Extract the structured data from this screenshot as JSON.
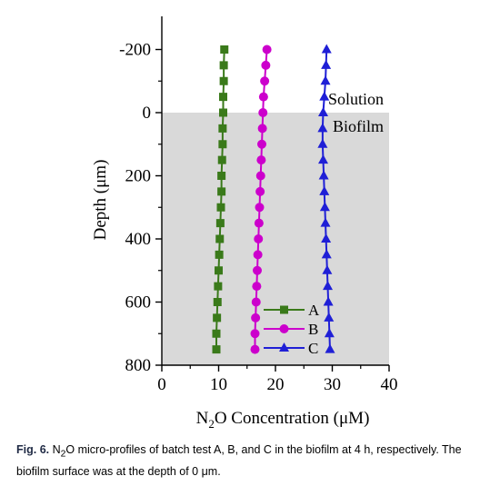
{
  "chart_data": {
    "type": "line",
    "title": "",
    "xlabel_parts": [
      "N",
      "2",
      "O  Concentration (μM)"
    ],
    "ylabel": "Depth (μm)",
    "xlim": [
      0,
      40
    ],
    "ylim": [
      -250,
      800
    ],
    "y_inverted": true,
    "x_ticks": [
      0,
      10,
      20,
      30,
      40
    ],
    "y_ticks": [
      -200,
      0,
      200,
      400,
      600,
      800
    ],
    "grid": false,
    "legend_position": "bottom-center",
    "shaded_region": {
      "from_depth": 0,
      "to_depth": 800,
      "color": "#d9d9d9"
    },
    "region_labels": {
      "upper": "Solution",
      "lower": "Biofilm"
    },
    "depth": [
      -200,
      -150,
      -100,
      -50,
      0,
      50,
      100,
      150,
      200,
      250,
      300,
      350,
      400,
      450,
      500,
      550,
      600,
      650,
      700,
      750
    ],
    "series": [
      {
        "name": "A",
        "color": "#3a7a1a",
        "marker": "square",
        "values": [
          11.0,
          10.9,
          10.9,
          10.8,
          10.8,
          10.7,
          10.7,
          10.6,
          10.5,
          10.5,
          10.4,
          10.3,
          10.2,
          10.1,
          10.0,
          9.9,
          9.8,
          9.7,
          9.6,
          9.6
        ]
      },
      {
        "name": "B",
        "color": "#cc00cc",
        "marker": "circle",
        "values": [
          18.5,
          18.3,
          18.1,
          17.9,
          17.8,
          17.7,
          17.6,
          17.5,
          17.4,
          17.3,
          17.2,
          17.1,
          17.0,
          16.9,
          16.8,
          16.7,
          16.6,
          16.5,
          16.4,
          16.4
        ]
      },
      {
        "name": "C",
        "color": "#1f1fd6",
        "marker": "triangle",
        "values": [
          29.0,
          28.9,
          28.8,
          28.6,
          28.4,
          28.3,
          28.3,
          28.4,
          28.5,
          28.6,
          28.7,
          28.8,
          28.9,
          29.0,
          29.1,
          29.2,
          29.3,
          29.4,
          29.5,
          29.6
        ]
      }
    ]
  },
  "caption": {
    "label": "Fig. 6.",
    "text_before_sub": " N",
    "sub": "2",
    "text_after_sub": "O micro-profiles of batch test A, B, and C in the biofilm at 4 h, respectively. The biofilm surface was at the depth of 0 μm."
  }
}
